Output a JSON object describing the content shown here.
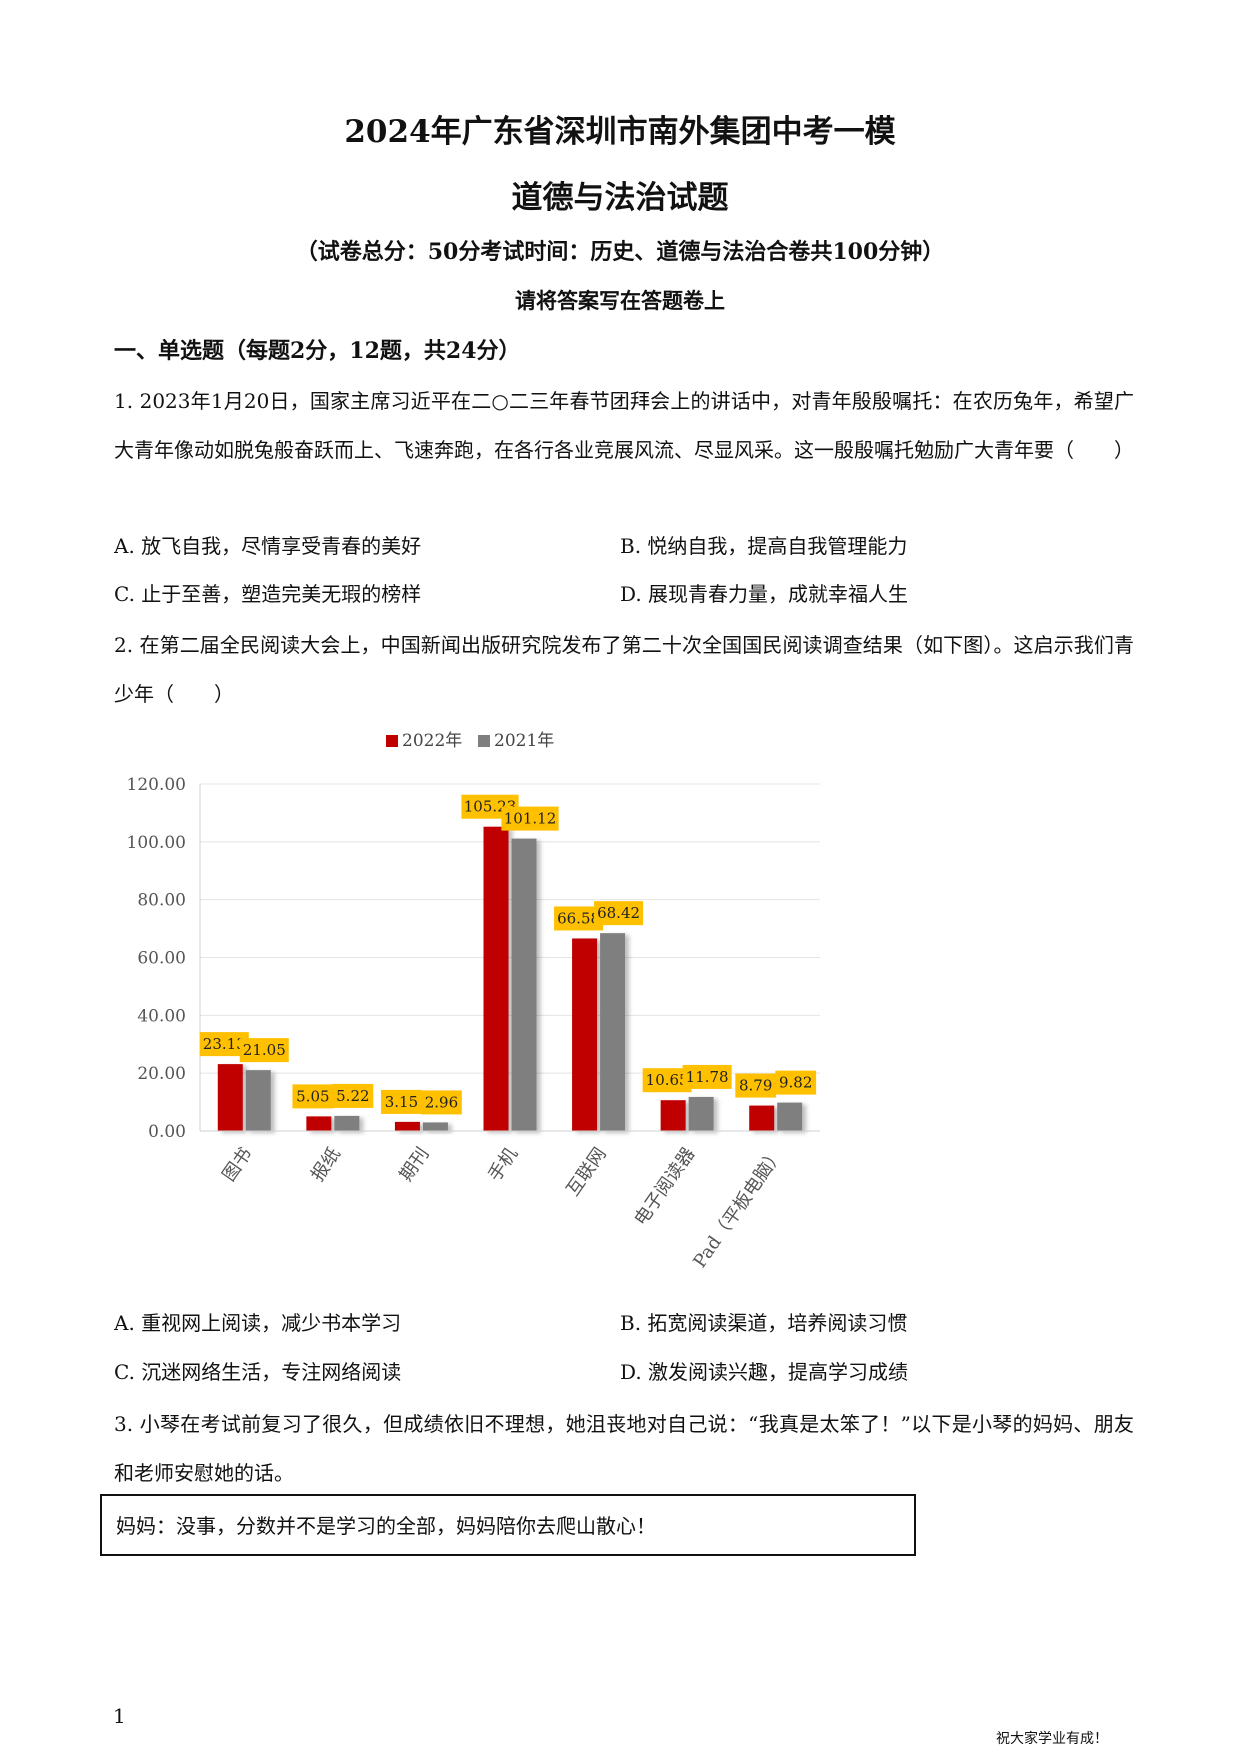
{
  "header": {
    "title": "2024年广东省深圳市南外集团中考一模",
    "subtitle": "道德与法治试题",
    "exam_info": "（试卷总分：50分考试时间：历史、道德与法治合卷共100分钟）",
    "instruction": "请将答案写在答题卷上"
  },
  "section1": {
    "heading": "一、单选题（每题2分，12题，共24分）"
  },
  "q1": {
    "text": "1. 2023年1月20日，国家主席习近平在二○二三年春节团拜会上的讲话中，对青年殷殷嘱托：在农历兔年，希望广大青年像动如脱兔般奋跃而上、飞速奔跑，在各行各业竞展风流、尽显风采。这一殷殷嘱托勉励广大青年要（　　）",
    "options": {
      "A": "A. 放飞自我，尽情享受青春的美好",
      "B": "B. 悦纳自我，提高自我管理能力",
      "C": "C. 止于至善，塑造完美无瑕的榜样",
      "D": "D. 展现青春力量，成就幸福人生"
    }
  },
  "q2": {
    "text": "2. 在第二届全民阅读大会上，中国新闻出版研究院发布了第二十次全国国民阅读调查结果（如下图）。这启示我们青少年（　　）",
    "options": {
      "A": "A. 重视网上阅读，减少书本学习",
      "B": "B. 拓宽阅读渠道，培养阅读习惯",
      "C": "C. 沉迷网络生活，专注网络阅读",
      "D": "D. 激发阅读兴趣，提高学习成绩"
    }
  },
  "chart_data": {
    "type": "bar",
    "categories": [
      "图书",
      "报纸",
      "期刊",
      "手机",
      "互联网",
      "电子阅读器",
      "Pad（平板电脑）"
    ],
    "series": [
      {
        "name": "2022年",
        "values": [
          23.13,
          5.05,
          3.15,
          105.23,
          66.58,
          10.65,
          8.79
        ],
        "labels": [
          "23.13",
          "5.05",
          "3.15",
          "105.23",
          "66.58",
          "10.65",
          "8.79"
        ],
        "color": "#c00000"
      },
      {
        "name": "2021年",
        "values": [
          21.05,
          5.22,
          2.96,
          101.12,
          68.42,
          11.78,
          9.82
        ],
        "labels": [
          "21.05",
          "5.22",
          "2.96",
          "101.12",
          "68.42",
          "11.78",
          "9.82"
        ],
        "color": "#7f7f7f"
      }
    ],
    "yticks": [
      "0.00",
      "20.00",
      "40.00",
      "60.00",
      "80.00",
      "100.00",
      "120.00"
    ],
    "ylim": [
      0,
      120
    ],
    "grid": true,
    "legend": "top",
    "label_bg": "#ffc000"
  },
  "q3": {
    "text": "3. 小琴在考试前复习了很久，但成绩依旧不理想，她沮丧地对自己说：“我真是太笨了！”以下是小琴的妈妈、朋友和老师安慰她的话。",
    "box_text": "妈妈：没事，分数并不是学习的全部，妈妈陪你去爬山散心！"
  },
  "footer": {
    "page_number": "1",
    "wish": "祝大家学业有成！"
  }
}
